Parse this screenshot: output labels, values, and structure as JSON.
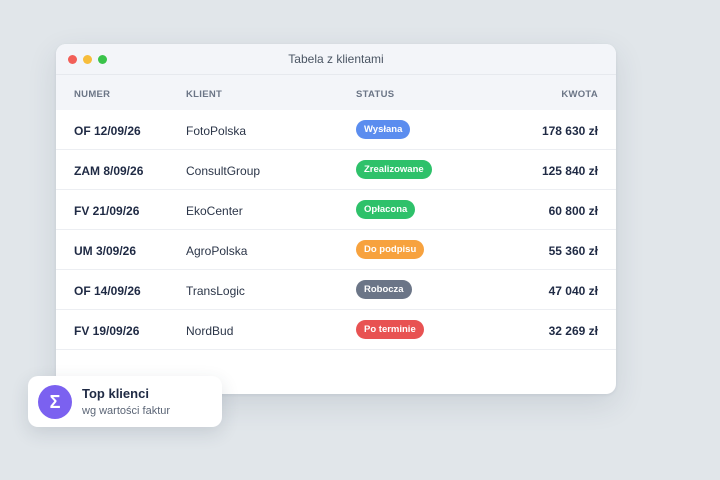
{
  "window": {
    "title": "Tabela z klientami"
  },
  "table": {
    "headers": {
      "number": "NUMER",
      "client": "KLIENT",
      "status": "STATUS",
      "amount": "KWOTA"
    },
    "rows": [
      {
        "number": "OF 12/09/26",
        "client": "FotoPolska",
        "status": "Wysłana",
        "status_color": "#5b8def",
        "amount": "178 630 zł"
      },
      {
        "number": "ZAM 8/09/26",
        "client": "ConsultGroup",
        "status": "Zrealizowane",
        "status_color": "#2ec16a",
        "amount": "125 840 zł"
      },
      {
        "number": "FV 21/09/26",
        "client": "EkoCenter",
        "status": "Opłacona",
        "status_color": "#2ec16a",
        "amount": "60 800 zł"
      },
      {
        "number": "UM 3/09/26",
        "client": "AgroPolska",
        "status": "Do podpisu",
        "status_color": "#f7a23e",
        "amount": "55 360 zł"
      },
      {
        "number": "OF 14/09/26",
        "client": "TransLogic",
        "status": "Robocza",
        "status_color": "#6b7587",
        "amount": "47 040 zł"
      },
      {
        "number": "FV 19/09/26",
        "client": "NordBud",
        "status": "Po terminie",
        "status_color": "#e85252",
        "amount": "32 269 zł"
      }
    ]
  },
  "card": {
    "icon": "sigma-icon",
    "symbol": "Σ",
    "title": "Top klienci",
    "subtitle": "wg wartości faktur"
  }
}
